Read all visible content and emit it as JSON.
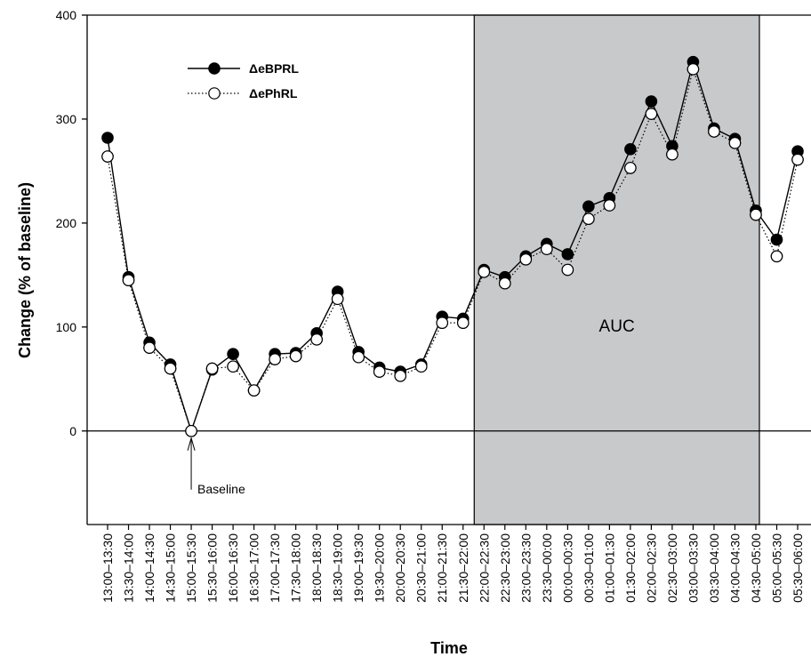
{
  "chart_data": {
    "type": "line",
    "title": "",
    "xlabel": "Time",
    "ylabel": "Change (% of baseline)",
    "ylim": [
      -90,
      400
    ],
    "yticks": [
      0,
      100,
      200,
      300,
      400
    ],
    "grid": false,
    "legend_position": "top-left",
    "categories": [
      "13:00–13:30",
      "13:30–14:00",
      "14:00–14:30",
      "14:30–15:00",
      "15:00–15:30",
      "15:30–16:00",
      "16:00–16:30",
      "16:30–17:00",
      "17:00–17:30",
      "17:30–18:00",
      "18:00–18:30",
      "18:30–19:00",
      "19:00–19:30",
      "19:30–20:00",
      "20:00–20:30",
      "20:30–21:00",
      "21:00–21:30",
      "21:30–22:00",
      "22:00–22:30",
      "22:30–23:00",
      "23:00–23:30",
      "23:30–00:00",
      "00:00–00:30",
      "00:30–01:00",
      "01:00–01:30",
      "01:30–02:00",
      "02:00–02:30",
      "02:30–03:00",
      "03:00–03:30",
      "03:30–04:00",
      "04:00–04:30",
      "04:30–05:00",
      "05:00–05:30",
      "05:30–06:00"
    ],
    "series": [
      {
        "name": "ΔeBPRL",
        "marker": "filled-circle",
        "line": "solid",
        "color": "#000000",
        "values": [
          282,
          148,
          85,
          64,
          0,
          59,
          74,
          39,
          74,
          75,
          94,
          134,
          76,
          61,
          57,
          64,
          110,
          108,
          155,
          148,
          168,
          180,
          170,
          216,
          224,
          271,
          317,
          274,
          355,
          291,
          281,
          212,
          184,
          269
        ]
      },
      {
        "name": "ΔePhRL",
        "marker": "open-circle",
        "line": "dotted",
        "color": "#000000",
        "values": [
          264,
          145,
          80,
          60,
          0,
          60,
          62,
          39,
          69,
          72,
          88,
          127,
          71,
          57,
          53,
          62,
          104,
          104,
          153,
          142,
          165,
          175,
          155,
          204,
          217,
          253,
          305,
          266,
          348,
          288,
          277,
          208,
          168,
          261
        ]
      }
    ],
    "shaded_region": {
      "label": "AUC",
      "from_category": "22:00–22:30",
      "to_category": "04:30–05:00",
      "fill": "#c8c9cb"
    },
    "annotations": [
      {
        "text": "Baseline",
        "category": "15:00–15:30",
        "value": 0
      }
    ],
    "zero_line": true
  }
}
